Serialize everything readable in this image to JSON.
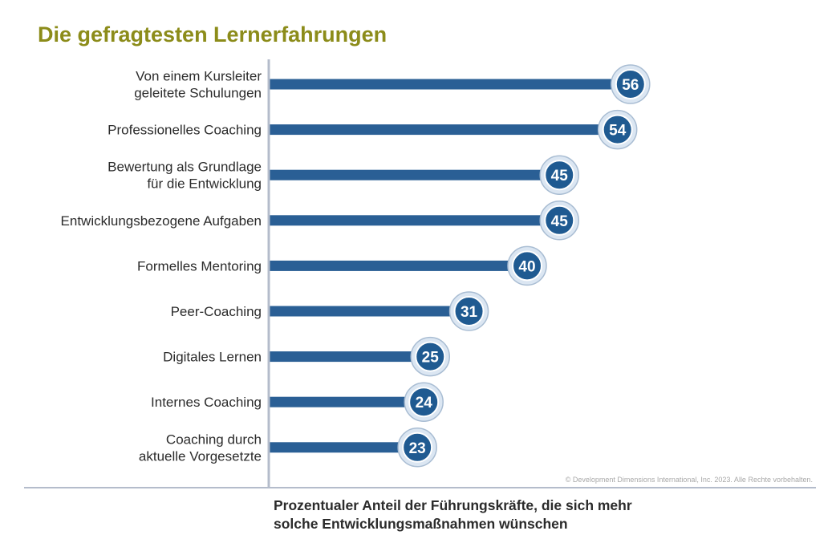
{
  "chart_data": {
    "type": "bar",
    "orientation": "horizontal",
    "title": "Die gefragtesten Lernerfahrungen",
    "xlabel": "Prozentualer Anteil der Führungskräfte, die sich mehr solche Entwicklungsmaßnahmen wünschen",
    "categories": [
      "Von einem Kursleiter geleitete Schulungen",
      "Professionelles Coaching",
      "Bewertung als Grundlage für die Entwicklung",
      "Entwicklungsbezogene Aufgaben",
      "Formelles Mentoring",
      "Peer-Coaching",
      "Digitales Lernen",
      "Internes Coaching",
      "Coaching durch aktuelle Vorgesetzte"
    ],
    "category_lines": [
      [
        "Von einem Kursleiter",
        "geleitete Schulungen"
      ],
      [
        "Professionelles Coaching"
      ],
      [
        "Bewertung als Grundlage",
        "für die Entwicklung"
      ],
      [
        "Entwicklungsbezogene Aufgaben"
      ],
      [
        "Formelles Mentoring"
      ],
      [
        "Peer-Coaching"
      ],
      [
        "Digitales Lernen"
      ],
      [
        "Internes Coaching"
      ],
      [
        "Coaching durch",
        "aktuelle Vorgesetzte"
      ]
    ],
    "values": [
      56,
      54,
      45,
      45,
      40,
      31,
      25,
      24,
      23
    ],
    "bar_color": "#2a5f95",
    "grid": false,
    "legend": "none"
  },
  "footer": {
    "copyright": "© Development Dimensions International, Inc. 2023. Alle Rechte vorbehalten.",
    "xlabel_line1": "Prozentualer Anteil der Führungskräfte, die sich mehr",
    "xlabel_line2": "solche Entwicklungsmaßnahmen wünschen"
  },
  "colors": {
    "title": "#8c8c1a",
    "bar": "#2a5f95",
    "bubble_fill": "#1f5a91",
    "bubble_ring": "#dbe6f2",
    "axis": "#b4bccb"
  }
}
